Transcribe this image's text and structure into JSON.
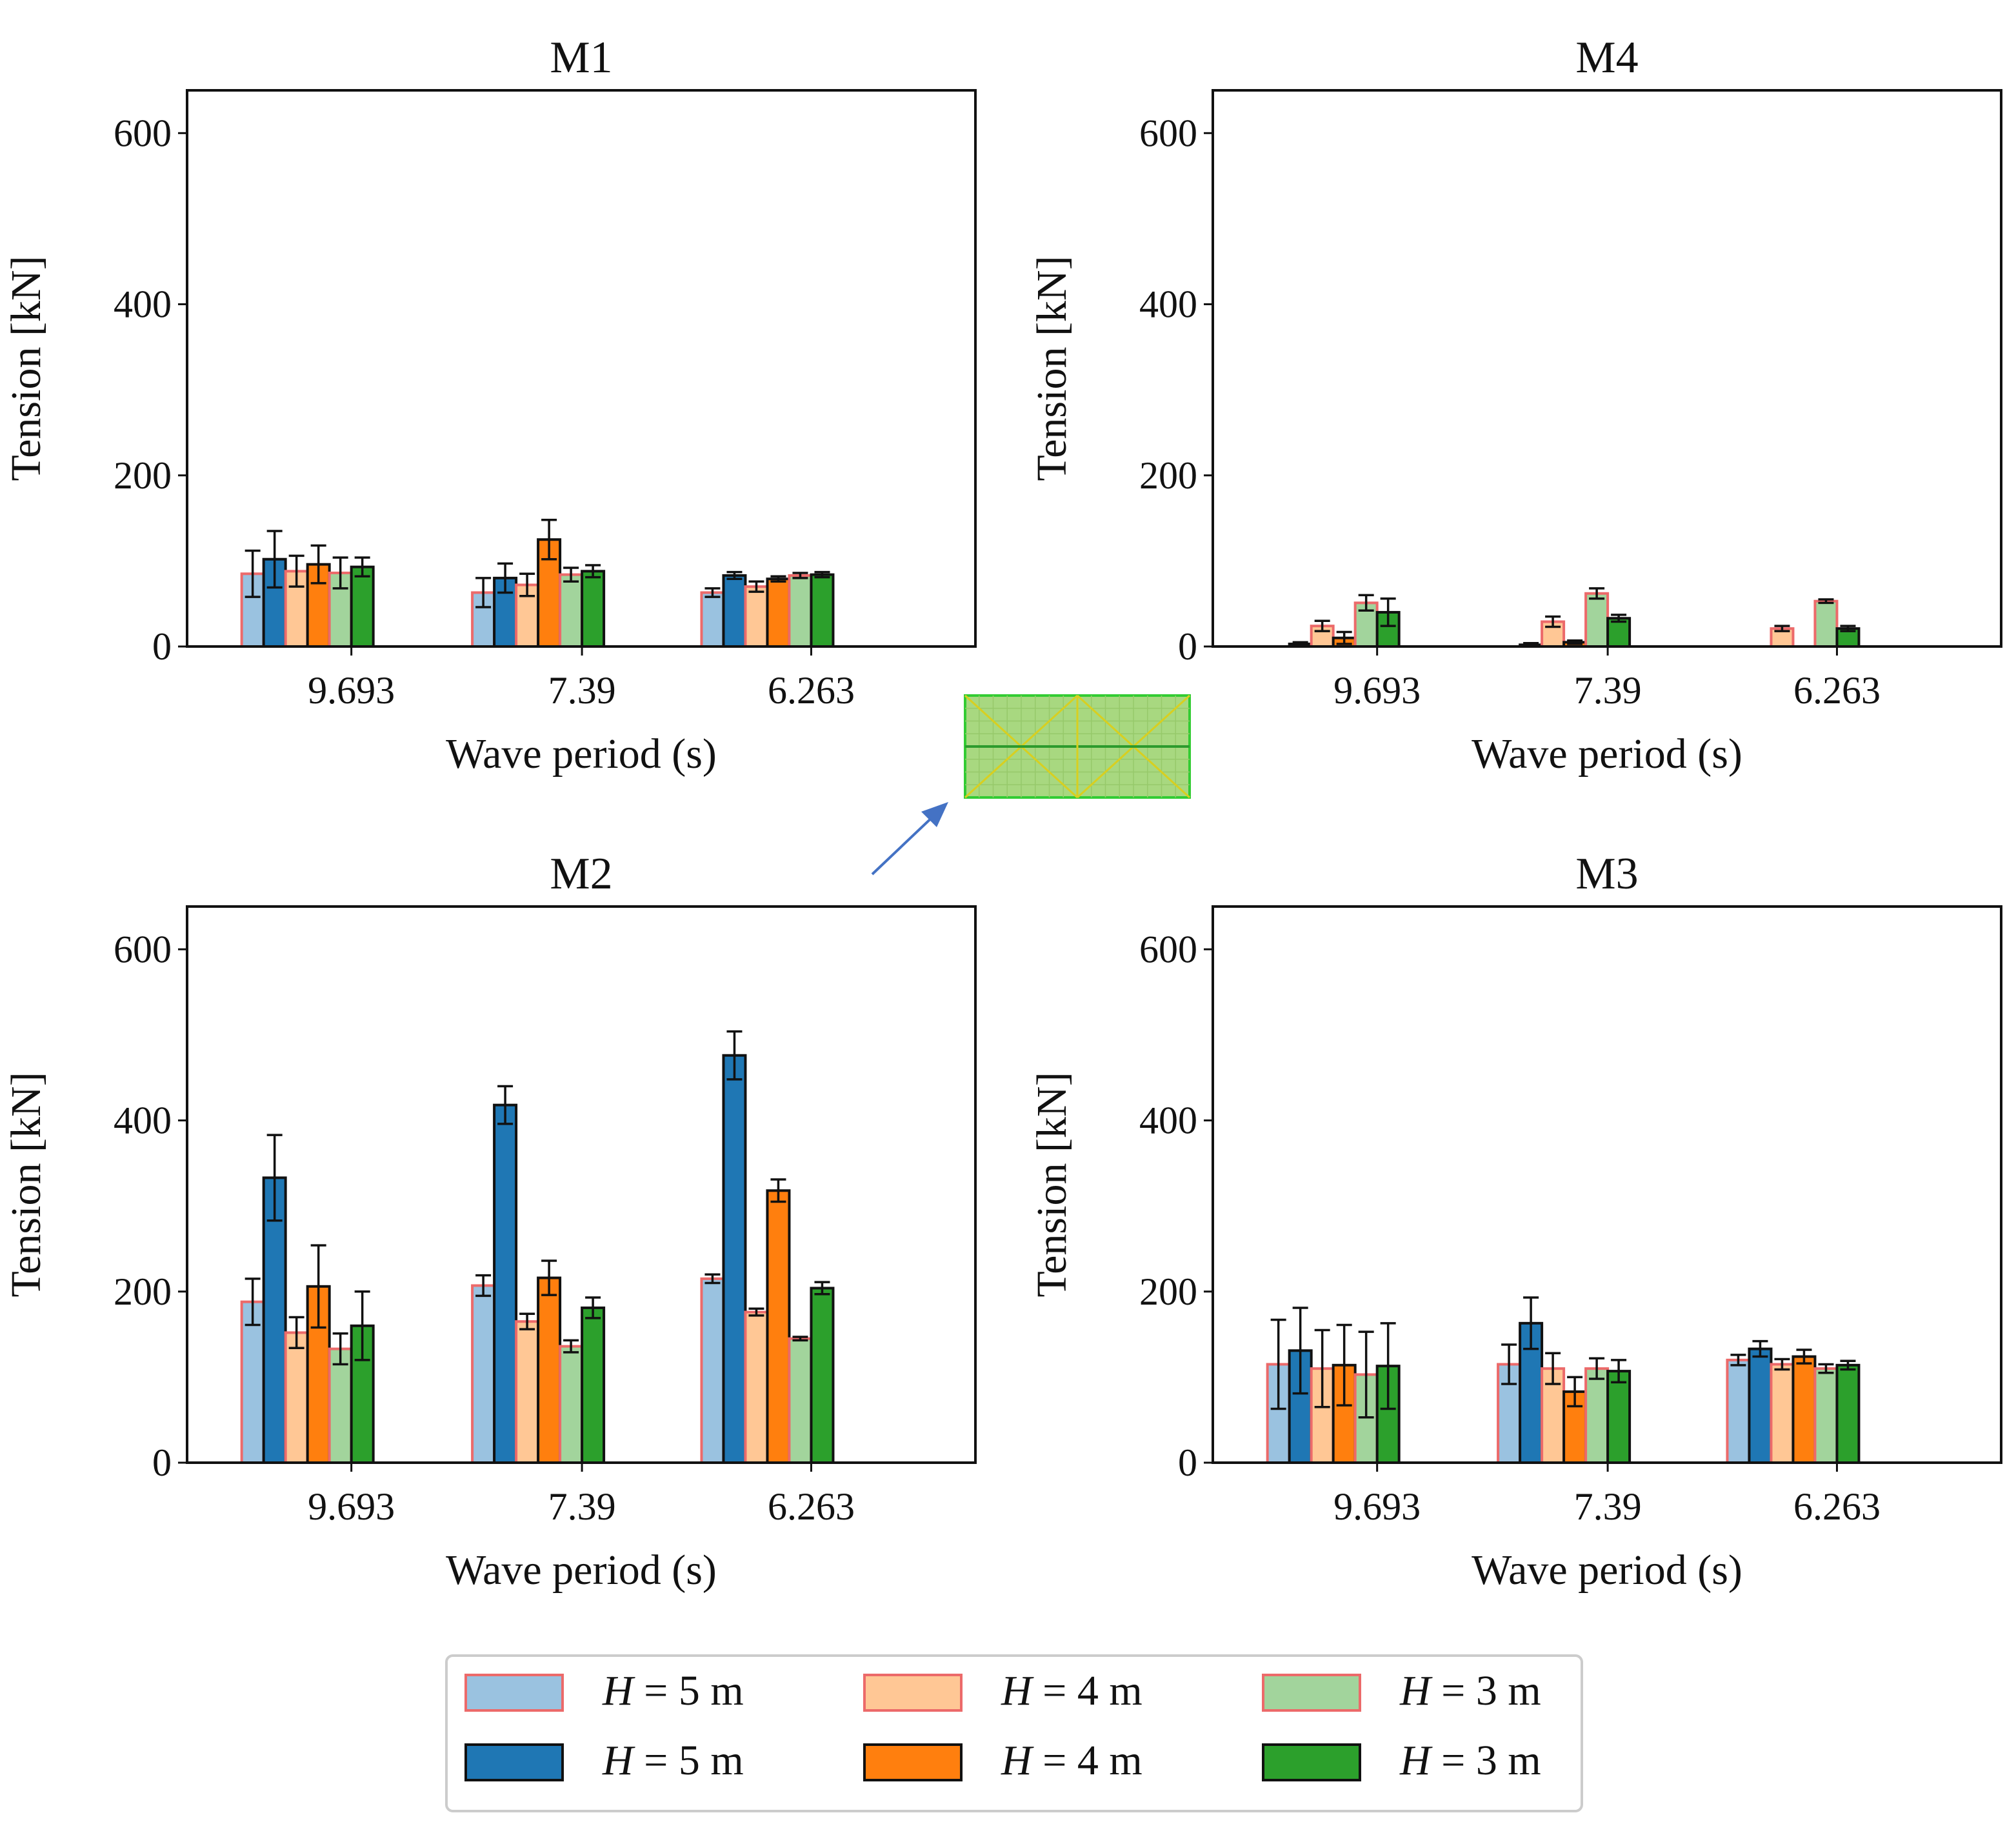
{
  "figure": {
    "legend_title": "",
    "inset_icon": "floating-platform-mesh-icon"
  },
  "colors": {
    "light": [
      "#9ac2e0",
      "#ffc795",
      "#a2d49c"
    ],
    "dark": [
      "#1f77b4",
      "#ff7f0e",
      "#2ca02c"
    ],
    "light_edge": "#ec6a6a",
    "dark_edge": "#111111",
    "inset_fill": "#a8d880",
    "inset_edge": "#33cc33",
    "inset_lines": "#d8cf20",
    "arrow": "#4472c4"
  },
  "legend": {
    "entries": [
      {
        "style": "light",
        "color_index": 0,
        "prefix": "H",
        "suffix": " = 5 m"
      },
      {
        "style": "light",
        "color_index": 1,
        "prefix": "H",
        "suffix": " = 4 m"
      },
      {
        "style": "light",
        "color_index": 2,
        "prefix": "H",
        "suffix": " = 3 m"
      },
      {
        "style": "dark",
        "color_index": 0,
        "prefix": "H",
        "suffix": " = 5 m"
      },
      {
        "style": "dark",
        "color_index": 1,
        "prefix": "H",
        "suffix": " = 4 m"
      },
      {
        "style": "dark",
        "color_index": 2,
        "prefix": "H",
        "suffix": " = 3 m"
      }
    ]
  },
  "chart_data": [
    {
      "type": "bar",
      "title": "M1",
      "xlabel": "Wave period (s)",
      "ylabel": "Tension [kN]",
      "categories": [
        "9.693",
        "7.39",
        "6.263"
      ],
      "ylim": [
        0,
        650
      ],
      "yticks": [
        0,
        200,
        400,
        600
      ],
      "series": [
        {
          "name": "H = 5 m (light)",
          "values": [
            85,
            63,
            63
          ],
          "errors": [
            27,
            17,
            5
          ]
        },
        {
          "name": "H = 5 m (dark)",
          "values": [
            102,
            80,
            83
          ],
          "errors": [
            33,
            17,
            4
          ]
        },
        {
          "name": "H = 4 m (light)",
          "values": [
            88,
            72,
            70
          ],
          "errors": [
            18,
            13,
            6
          ]
        },
        {
          "name": "H = 4 m (dark)",
          "values": [
            96,
            125,
            79
          ],
          "errors": [
            22,
            23,
            3
          ]
        },
        {
          "name": "H = 3 m (light)",
          "values": [
            86,
            84,
            83
          ],
          "errors": [
            18,
            8,
            3
          ]
        },
        {
          "name": "H = 3 m (dark)",
          "values": [
            93,
            88,
            84
          ],
          "errors": [
            11,
            7,
            3
          ]
        }
      ]
    },
    {
      "type": "bar",
      "title": "M4",
      "xlabel": "Wave period (s)",
      "ylabel": "Tension [kN]",
      "categories": [
        "9.693",
        "7.39",
        "6.263"
      ],
      "ylim": [
        0,
        650
      ],
      "yticks": [
        0,
        200,
        400,
        600
      ],
      "series": [
        {
          "name": "H = 5 m (light)",
          "values": [
            0,
            0,
            0
          ],
          "errors": [
            0,
            0,
            0
          ]
        },
        {
          "name": "H = 5 m (dark)",
          "values": [
            3,
            2,
            0
          ],
          "errors": [
            2,
            2,
            0
          ]
        },
        {
          "name": "H = 4 m (light)",
          "values": [
            24,
            29,
            21
          ],
          "errors": [
            6,
            6,
            3
          ]
        },
        {
          "name": "H = 4 m (dark)",
          "values": [
            10,
            5,
            0
          ],
          "errors": [
            7,
            2,
            0
          ]
        },
        {
          "name": "H = 3 m (light)",
          "values": [
            51,
            62,
            53
          ],
          "errors": [
            9,
            6,
            2
          ]
        },
        {
          "name": "H = 3 m (dark)",
          "values": [
            40,
            33,
            21
          ],
          "errors": [
            16,
            4,
            3
          ]
        }
      ]
    },
    {
      "type": "bar",
      "title": "M2",
      "xlabel": "Wave period (s)",
      "ylabel": "Tension [kN]",
      "categories": [
        "9.693",
        "7.39",
        "6.263"
      ],
      "ylim": [
        0,
        650
      ],
      "yticks": [
        0,
        200,
        400,
        600
      ],
      "series": [
        {
          "name": "H = 5 m (light)",
          "values": [
            188,
            207,
            215
          ],
          "errors": [
            27,
            12,
            5
          ]
        },
        {
          "name": "H = 5 m (dark)",
          "values": [
            333,
            418,
            476
          ],
          "errors": [
            50,
            22,
            28
          ]
        },
        {
          "name": "H = 4 m (light)",
          "values": [
            152,
            165,
            176
          ],
          "errors": [
            18,
            9,
            4
          ]
        },
        {
          "name": "H = 4 m (dark)",
          "values": [
            206,
            216,
            318
          ],
          "errors": [
            48,
            20,
            13
          ]
        },
        {
          "name": "H = 3 m (light)",
          "values": [
            133,
            136,
            145
          ],
          "errors": [
            18,
            7,
            2
          ]
        },
        {
          "name": "H = 3 m (dark)",
          "values": [
            160,
            181,
            204
          ],
          "errors": [
            40,
            12,
            7
          ]
        }
      ]
    },
    {
      "type": "bar",
      "title": "M3",
      "xlabel": "Wave period (s)",
      "ylabel": "Tension [kN]",
      "categories": [
        "9.693",
        "7.39",
        "6.263"
      ],
      "ylim": [
        0,
        650
      ],
      "yticks": [
        0,
        200,
        400,
        600
      ],
      "series": [
        {
          "name": "H = 5 m (light)",
          "values": [
            115,
            115,
            120
          ],
          "errors": [
            52,
            23,
            6
          ]
        },
        {
          "name": "H = 5 m (dark)",
          "values": [
            131,
            163,
            133
          ],
          "errors": [
            50,
            30,
            9
          ]
        },
        {
          "name": "H = 4 m (light)",
          "values": [
            110,
            110,
            115
          ],
          "errors": [
            45,
            18,
            6
          ]
        },
        {
          "name": "H = 4 m (dark)",
          "values": [
            114,
            83,
            124
          ],
          "errors": [
            47,
            17,
            8
          ]
        },
        {
          "name": "H = 3 m (light)",
          "values": [
            103,
            110,
            110
          ],
          "errors": [
            50,
            12,
            5
          ]
        },
        {
          "name": "H = 3 m (dark)",
          "values": [
            113,
            107,
            114
          ],
          "errors": [
            50,
            13,
            5
          ]
        }
      ]
    }
  ]
}
